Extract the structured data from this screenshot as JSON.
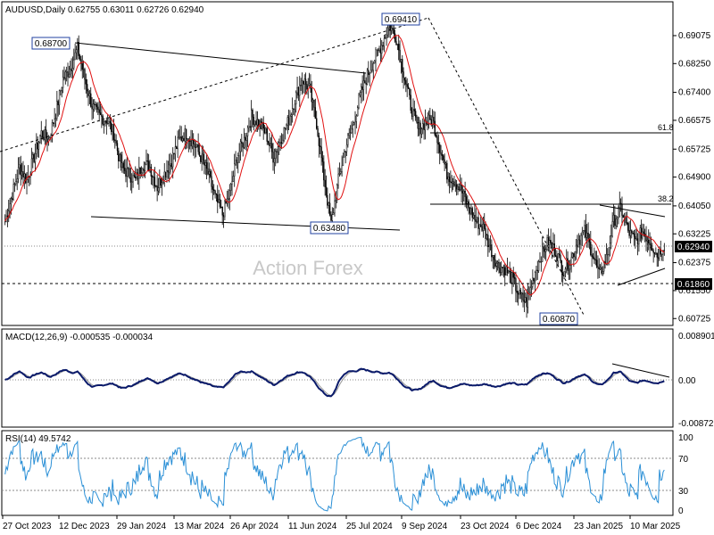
{
  "chart_data": {
    "type": "candlestick",
    "symbol_title": "AUDUSD,Daily",
    "ohlc": {
      "open": "0.62755",
      "high": "0.63011",
      "low": "0.62726",
      "close": "0.62940"
    },
    "watermark": "Action Forex",
    "price_axis": {
      "ticks": [
        "0.69075",
        "0.68250",
        "0.67400",
        "0.66575",
        "0.65725",
        "0.64900",
        "0.64050",
        "0.63225",
        "0.62375",
        "0.61550",
        "0.60725"
      ],
      "ylim": [
        0.606,
        0.696
      ]
    },
    "date_labels": [
      "27 Oct 2023",
      "12 Dec 2023",
      "29 Jan 2024",
      "13 Mar 2024",
      "26 Apr 2024",
      "11 Jun 2024",
      "25 Jul 2024",
      "9 Sep 2024",
      "23 Oct 2024",
      "6 Dec 2024",
      "23 Jan 2025",
      "10 Mar 2025"
    ],
    "annotations": {
      "level_high_1": "0.68700",
      "level_low_1": "0.63480",
      "level_high_2": "0.69410",
      "level_low_2": "0.60870",
      "fib_618": "61.8",
      "fib_382": "38.2",
      "current_price": "0.62940",
      "support_level": "0.61860"
    },
    "close_path": [
      [
        0,
        0.636
      ],
      [
        6,
        0.644
      ],
      [
        12,
        0.652
      ],
      [
        18,
        0.648
      ],
      [
        24,
        0.655
      ],
      [
        30,
        0.662
      ],
      [
        36,
        0.66
      ],
      [
        42,
        0.668
      ],
      [
        48,
        0.678
      ],
      [
        54,
        0.681
      ],
      [
        60,
        0.687
      ],
      [
        66,
        0.678
      ],
      [
        72,
        0.67
      ],
      [
        78,
        0.667
      ],
      [
        84,
        0.666
      ],
      [
        90,
        0.662
      ],
      [
        96,
        0.652
      ],
      [
        102,
        0.65
      ],
      [
        108,
        0.648
      ],
      [
        114,
        0.653
      ],
      [
        120,
        0.652
      ],
      [
        126,
        0.646
      ],
      [
        132,
        0.65
      ],
      [
        138,
        0.654
      ],
      [
        144,
        0.66
      ],
      [
        150,
        0.662
      ],
      [
        156,
        0.659
      ],
      [
        162,
        0.655
      ],
      [
        168,
        0.65
      ],
      [
        174,
        0.643
      ],
      [
        180,
        0.638
      ],
      [
        186,
        0.644
      ],
      [
        192,
        0.655
      ],
      [
        198,
        0.66
      ],
      [
        204,
        0.667
      ],
      [
        210,
        0.665
      ],
      [
        216,
        0.662
      ],
      [
        222,
        0.655
      ],
      [
        228,
        0.66
      ],
      [
        234,
        0.665
      ],
      [
        240,
        0.672
      ],
      [
        246,
        0.678
      ],
      [
        252,
        0.675
      ],
      [
        258,
        0.665
      ],
      [
        264,
        0.649
      ],
      [
        270,
        0.635
      ],
      [
        276,
        0.648
      ],
      [
        282,
        0.658
      ],
      [
        288,
        0.664
      ],
      [
        294,
        0.673
      ],
      [
        300,
        0.679
      ],
      [
        306,
        0.684
      ],
      [
        312,
        0.688
      ],
      [
        318,
        0.694
      ],
      [
        324,
        0.69
      ],
      [
        330,
        0.68
      ],
      [
        336,
        0.67
      ],
      [
        342,
        0.663
      ],
      [
        348,
        0.665
      ],
      [
        354,
        0.666
      ],
      [
        360,
        0.658
      ],
      [
        366,
        0.65
      ],
      [
        372,
        0.648
      ],
      [
        378,
        0.645
      ],
      [
        384,
        0.64
      ],
      [
        390,
        0.636
      ],
      [
        396,
        0.634
      ],
      [
        402,
        0.628
      ],
      [
        408,
        0.623
      ],
      [
        414,
        0.622
      ],
      [
        420,
        0.619
      ],
      [
        426,
        0.614
      ],
      [
        432,
        0.612
      ],
      [
        438,
        0.62
      ],
      [
        444,
        0.626
      ],
      [
        450,
        0.63
      ],
      [
        456,
        0.627
      ],
      [
        462,
        0.622
      ],
      [
        468,
        0.624
      ],
      [
        474,
        0.63
      ],
      [
        480,
        0.633
      ],
      [
        486,
        0.627
      ],
      [
        492,
        0.62
      ],
      [
        498,
        0.625
      ],
      [
        504,
        0.636
      ],
      [
        510,
        0.64
      ],
      [
        516,
        0.633
      ],
      [
        522,
        0.63
      ],
      [
        528,
        0.633
      ],
      [
        534,
        0.63
      ],
      [
        540,
        0.626
      ],
      [
        546,
        0.629
      ]
    ],
    "macd": {
      "title": "MACD(12,26,9) -0.000535 -0.000034",
      "ticks": [
        "0.008901",
        "0.00",
        "-0.008729"
      ]
    },
    "rsi": {
      "title": "RSI(14) 49.5742",
      "ticks": [
        "100",
        "70",
        "30",
        "0"
      ]
    }
  }
}
